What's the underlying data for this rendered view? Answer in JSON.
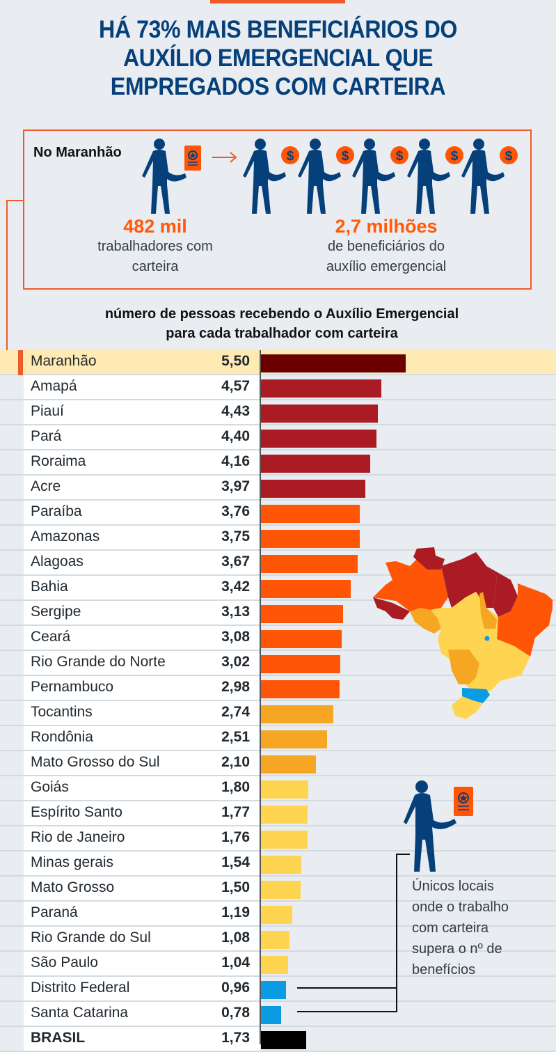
{
  "title": {
    "lines": [
      "HÁ 73% MAIS BENEFICIÁRIOS DO",
      "AUXÍLIO EMERGENCIAL QUE",
      "EMPREGADOS COM CARTEIRA"
    ]
  },
  "comparison_box": {
    "label": "No Maranhão",
    "left_stat": {
      "value": "482 mil",
      "line1": "trabalhadores com",
      "line2": "carteira"
    },
    "right_stat": {
      "value": "2,7 milhões",
      "line1": "de beneficiários do",
      "line2": "auxílio emergencial"
    },
    "icons": [
      "person-with-work-card-icon",
      "arrow-right-icon",
      "person-with-coin-icon",
      "person-with-coin-icon",
      "person-with-coin-icon",
      "person-with-coin-icon",
      "person-with-coin-icon"
    ]
  },
  "colors": {
    "accent": "#f05a28",
    "title": "#06407a",
    "person": "#06407a",
    "highlight_row": "#ffeab3",
    "tier_top": "#6b0000",
    "tier_1": "#ab1b23",
    "tier_2": "#ff5507",
    "tier_3": "#f5a623",
    "tier_4": "#ffd450",
    "tier_below_1": "#0a9be3",
    "total": "#000000"
  },
  "note": {
    "lines": [
      "Únicos locais",
      "onde o trabalho",
      "com carteira",
      "supera o nº de",
      "benefícios"
    ]
  },
  "chart_data": {
    "type": "bar",
    "orientation": "horizontal",
    "title": "número de pessoas recebendo o Auxílio Emergencial para cada trabalhador com carteira",
    "title_lines": [
      "número de pessoas recebendo o Auxílio Emergencial",
      "para cada trabalhador com carteira"
    ],
    "xlim": [
      0,
      5.5
    ],
    "grid": false,
    "rows": [
      {
        "name": "Maranhão",
        "label": "5,50",
        "value": 5.5,
        "color": "#6b0000",
        "highlight": true
      },
      {
        "name": "Amapá",
        "label": "4,57",
        "value": 4.57,
        "color": "#ab1b23"
      },
      {
        "name": "Piauí",
        "label": "4,43",
        "value": 4.43,
        "color": "#ab1b23"
      },
      {
        "name": "Pará",
        "label": "4,40",
        "value": 4.4,
        "color": "#ab1b23"
      },
      {
        "name": "Roraima",
        "label": "4,16",
        "value": 4.16,
        "color": "#ab1b23"
      },
      {
        "name": "Acre",
        "label": "3,97",
        "value": 3.97,
        "color": "#ab1b23"
      },
      {
        "name": "Paraíba",
        "label": "3,76",
        "value": 3.76,
        "color": "#ff5507"
      },
      {
        "name": "Amazonas",
        "label": "3,75",
        "value": 3.75,
        "color": "#ff5507"
      },
      {
        "name": "Alagoas",
        "label": "3,67",
        "value": 3.67,
        "color": "#ff5507"
      },
      {
        "name": "Bahia",
        "label": "3,42",
        "value": 3.42,
        "color": "#ff5507"
      },
      {
        "name": "Sergipe",
        "label": "3,13",
        "value": 3.13,
        "color": "#ff5507"
      },
      {
        "name": "Ceará",
        "label": "3,08",
        "value": 3.08,
        "color": "#ff5507"
      },
      {
        "name": "Rio Grande do Norte",
        "label": "3,02",
        "value": 3.02,
        "color": "#ff5507"
      },
      {
        "name": "Pernambuco",
        "label": "2,98",
        "value": 2.98,
        "color": "#ff5507"
      },
      {
        "name": "Tocantins",
        "label": "2,74",
        "value": 2.74,
        "color": "#f5a623"
      },
      {
        "name": "Rondônia",
        "label": "2,51",
        "value": 2.51,
        "color": "#f5a623"
      },
      {
        "name": "Mato Grosso do Sul",
        "label": "2,10",
        "value": 2.1,
        "color": "#f5a623"
      },
      {
        "name": "Goiás",
        "label": "1,80",
        "value": 1.8,
        "color": "#ffd450"
      },
      {
        "name": "Espírito Santo",
        "label": "1,77",
        "value": 1.77,
        "color": "#ffd450"
      },
      {
        "name": "Rio de Janeiro",
        "label": "1,76",
        "value": 1.76,
        "color": "#ffd450"
      },
      {
        "name": "Minas gerais",
        "label": "1,54",
        "value": 1.54,
        "color": "#ffd450"
      },
      {
        "name": "Mato Grosso",
        "label": "1,50",
        "value": 1.5,
        "color": "#ffd450"
      },
      {
        "name": "Paraná",
        "label": "1,19",
        "value": 1.19,
        "color": "#ffd450"
      },
      {
        "name": "Rio Grande do Sul",
        "label": "1,08",
        "value": 1.08,
        "color": "#ffd450"
      },
      {
        "name": "São Paulo",
        "label": "1,04",
        "value": 1.04,
        "color": "#ffd450"
      },
      {
        "name": "Distrito Federal",
        "label": "0,96",
        "value": 0.96,
        "color": "#0a9be3"
      },
      {
        "name": "Santa Catarina",
        "label": "0,78",
        "value": 0.78,
        "color": "#0a9be3"
      },
      {
        "name": "BRASIL",
        "label": "1,73",
        "value": 1.73,
        "color": "#000000",
        "total": true
      }
    ]
  }
}
